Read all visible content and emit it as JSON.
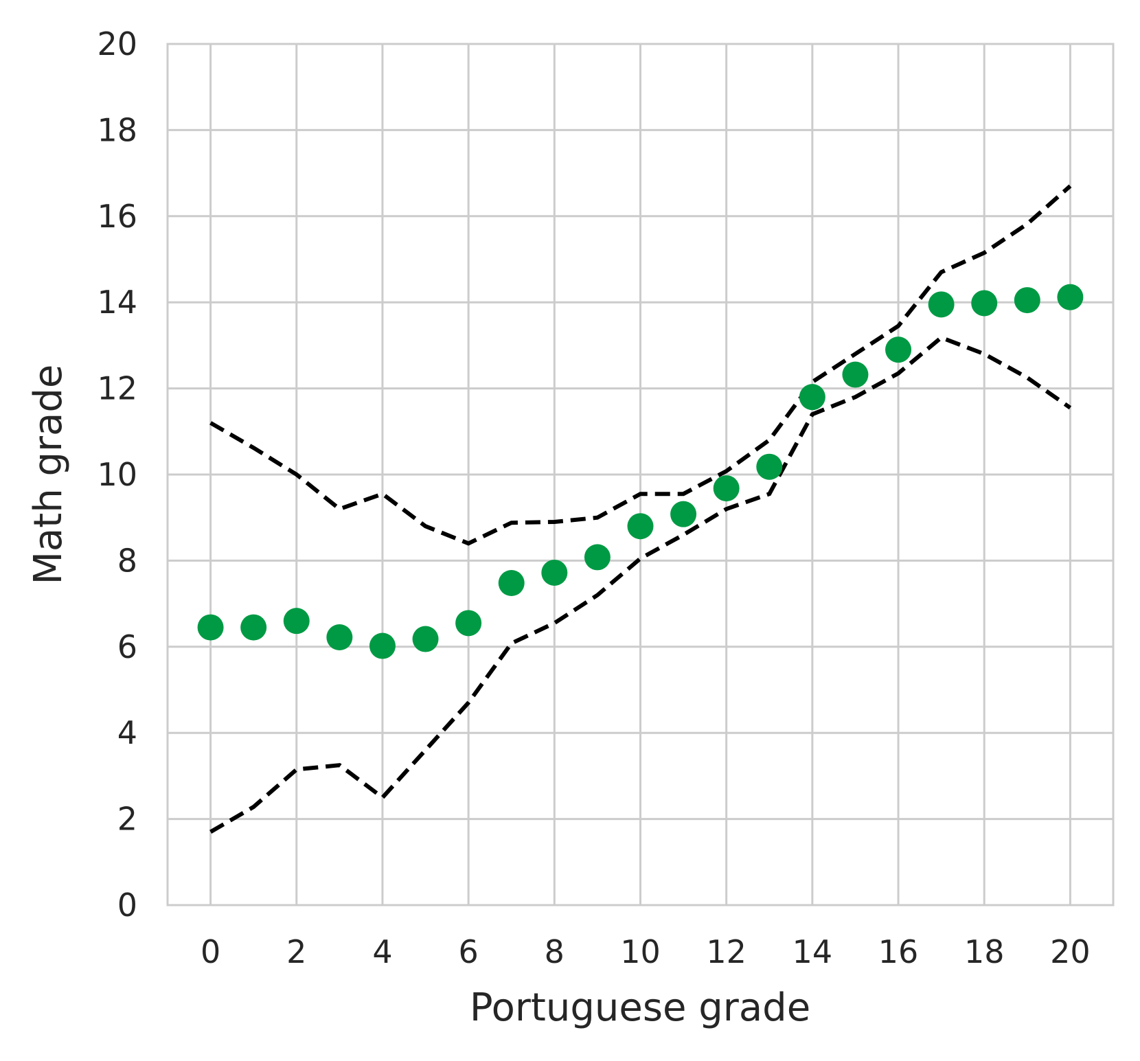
{
  "chart_data": {
    "type": "scatter",
    "xlabel": "Portuguese grade",
    "ylabel": "Math grade",
    "xlim": [
      -1,
      21
    ],
    "ylim": [
      0,
      20
    ],
    "xticks": [
      0,
      2,
      4,
      6,
      8,
      10,
      12,
      14,
      16,
      18,
      20
    ],
    "yticks": [
      0,
      2,
      4,
      6,
      8,
      10,
      12,
      14,
      16,
      18,
      20
    ],
    "grid": true,
    "series": [
      {
        "kind": "scatter",
        "color": "#009a44",
        "x": [
          0,
          1,
          2,
          3,
          4,
          5,
          6,
          7,
          8,
          9,
          10,
          11,
          12,
          13,
          14,
          15,
          16,
          17,
          18,
          19,
          20
        ],
        "y": [
          6.45,
          6.45,
          6.6,
          6.22,
          6.02,
          6.18,
          6.55,
          7.48,
          7.72,
          8.08,
          8.8,
          9.08,
          9.68,
          10.18,
          11.8,
          12.32,
          12.9,
          13.95,
          13.98,
          14.05,
          14.12
        ]
      },
      {
        "kind": "line",
        "style": "dashed",
        "color": "#000000",
        "x": [
          0,
          1,
          2,
          3,
          4,
          5,
          6,
          7,
          8,
          9,
          10,
          11,
          12,
          13,
          14,
          15,
          16,
          17,
          18,
          19,
          20
        ],
        "y": [
          11.2,
          10.62,
          10.0,
          9.2,
          9.55,
          8.8,
          8.4,
          8.88,
          8.9,
          9.0,
          9.55,
          9.55,
          10.08,
          10.8,
          12.15,
          12.8,
          13.45,
          14.7,
          15.15,
          15.82,
          16.7
        ]
      },
      {
        "kind": "line",
        "style": "dashed",
        "color": "#000000",
        "x": [
          0,
          1,
          2,
          3,
          4,
          5,
          6,
          7,
          8,
          9,
          10,
          11,
          12,
          13,
          14,
          15,
          16,
          17,
          18,
          19,
          20
        ],
        "y": [
          1.7,
          2.28,
          3.15,
          3.25,
          2.5,
          3.6,
          4.7,
          6.08,
          6.55,
          7.2,
          8.05,
          8.6,
          9.2,
          9.55,
          11.4,
          11.8,
          12.35,
          13.18,
          12.8,
          12.25,
          11.55
        ]
      }
    ]
  }
}
